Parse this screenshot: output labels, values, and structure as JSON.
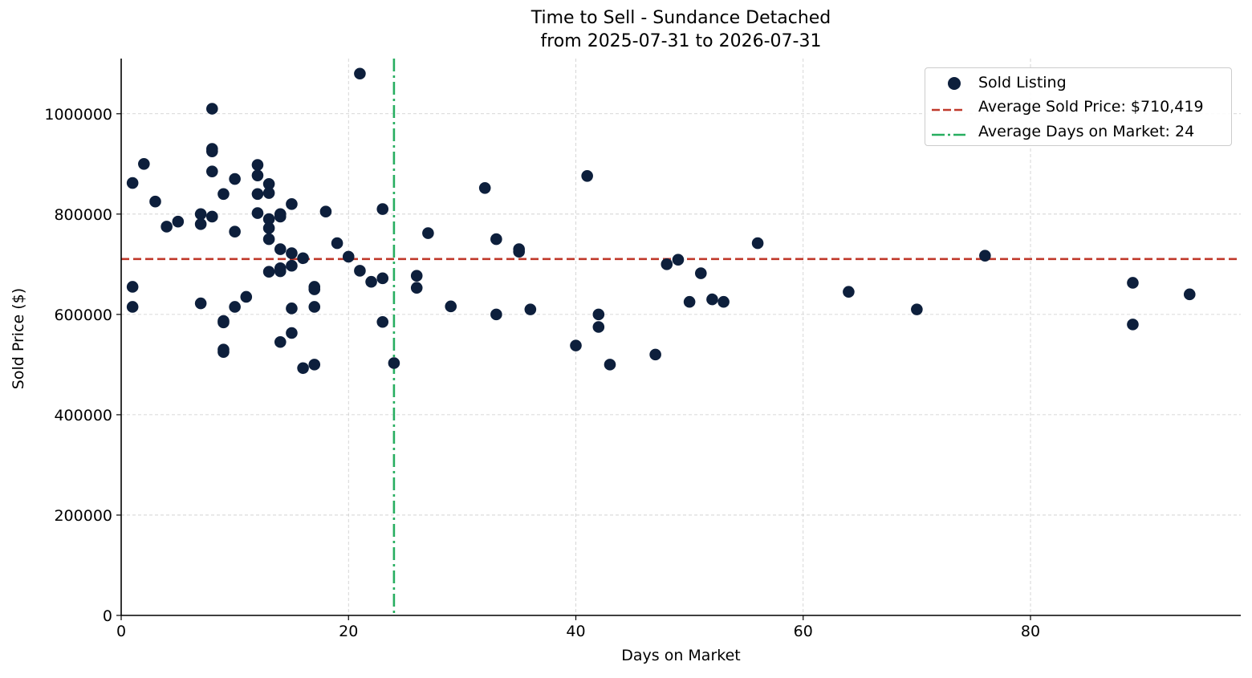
{
  "chart_data": {
    "type": "scatter",
    "title": "Time to Sell - Sundance Detached",
    "subtitle": "from 2025-07-31 to 2026-07-31",
    "xlabel": "Days on Market",
    "ylabel": "Sold Price ($)",
    "xlim": [
      0,
      98.5
    ],
    "ylim": [
      0,
      1110000
    ],
    "xticks": [
      0,
      20,
      40,
      60,
      80
    ],
    "yticks": [
      0,
      200000,
      400000,
      600000,
      800000,
      1000000
    ],
    "grid": true,
    "legend_position": "top-right",
    "series": [
      {
        "name": "Sold Listing",
        "color": "#0d1f3c",
        "points": [
          [
            1,
            862000
          ],
          [
            1,
            655000
          ],
          [
            1,
            615000
          ],
          [
            2,
            900000
          ],
          [
            3,
            825000
          ],
          [
            4,
            775000
          ],
          [
            5,
            785000
          ],
          [
            7,
            800000
          ],
          [
            7,
            780000
          ],
          [
            7,
            622000
          ],
          [
            8,
            1010000
          ],
          [
            8,
            930000
          ],
          [
            8,
            925000
          ],
          [
            8,
            885000
          ],
          [
            8,
            795000
          ],
          [
            9,
            840000
          ],
          [
            9,
            587000
          ],
          [
            9,
            584000
          ],
          [
            9,
            530000
          ],
          [
            9,
            525000
          ],
          [
            10,
            870000
          ],
          [
            10,
            765000
          ],
          [
            10,
            615000
          ],
          [
            11,
            635000
          ],
          [
            12,
            898000
          ],
          [
            12,
            877000
          ],
          [
            12,
            840000
          ],
          [
            12,
            802000
          ],
          [
            13,
            860000
          ],
          [
            13,
            842000
          ],
          [
            13,
            790000
          ],
          [
            13,
            772000
          ],
          [
            13,
            750000
          ],
          [
            13,
            685000
          ],
          [
            14,
            800000
          ],
          [
            14,
            795000
          ],
          [
            14,
            730000
          ],
          [
            14,
            692000
          ],
          [
            14,
            686000
          ],
          [
            14,
            545000
          ],
          [
            15,
            820000
          ],
          [
            15,
            722000
          ],
          [
            15,
            697000
          ],
          [
            15,
            612000
          ],
          [
            15,
            563000
          ],
          [
            16,
            712000
          ],
          [
            16,
            493000
          ],
          [
            17,
            655000
          ],
          [
            17,
            650000
          ],
          [
            17,
            615000
          ],
          [
            17,
            500000
          ],
          [
            18,
            805000
          ],
          [
            19,
            742000
          ],
          [
            20,
            715000
          ],
          [
            21,
            1080000
          ],
          [
            21,
            687000
          ],
          [
            22,
            665000
          ],
          [
            23,
            810000
          ],
          [
            23,
            672000
          ],
          [
            23,
            585000
          ],
          [
            24,
            503000
          ],
          [
            26,
            677000
          ],
          [
            26,
            653000
          ],
          [
            27,
            762000
          ],
          [
            29,
            616000
          ],
          [
            32,
            852000
          ],
          [
            33,
            750000
          ],
          [
            33,
            600000
          ],
          [
            35,
            730000
          ],
          [
            35,
            725000
          ],
          [
            36,
            610000
          ],
          [
            40,
            538000
          ],
          [
            41,
            876000
          ],
          [
            42,
            600000
          ],
          [
            42,
            575000
          ],
          [
            43,
            500000
          ],
          [
            47,
            520000
          ],
          [
            48,
            700000
          ],
          [
            49,
            709000
          ],
          [
            50,
            625000
          ],
          [
            51,
            682000
          ],
          [
            52,
            630000
          ],
          [
            53,
            625000
          ],
          [
            56,
            742000
          ],
          [
            64,
            645000
          ],
          [
            70,
            610000
          ],
          [
            76,
            717000
          ],
          [
            89,
            663000
          ],
          [
            89,
            580000
          ],
          [
            94,
            640000
          ]
        ]
      }
    ],
    "reference_lines": [
      {
        "name": "Average Sold Price: $710,419",
        "orientation": "horizontal",
        "value": 710419,
        "color": "#c0392b",
        "style": "dashed"
      },
      {
        "name": "Average Days on Market: 24",
        "orientation": "vertical",
        "value": 24,
        "color": "#27ae60",
        "style": "dashdot"
      }
    ]
  }
}
